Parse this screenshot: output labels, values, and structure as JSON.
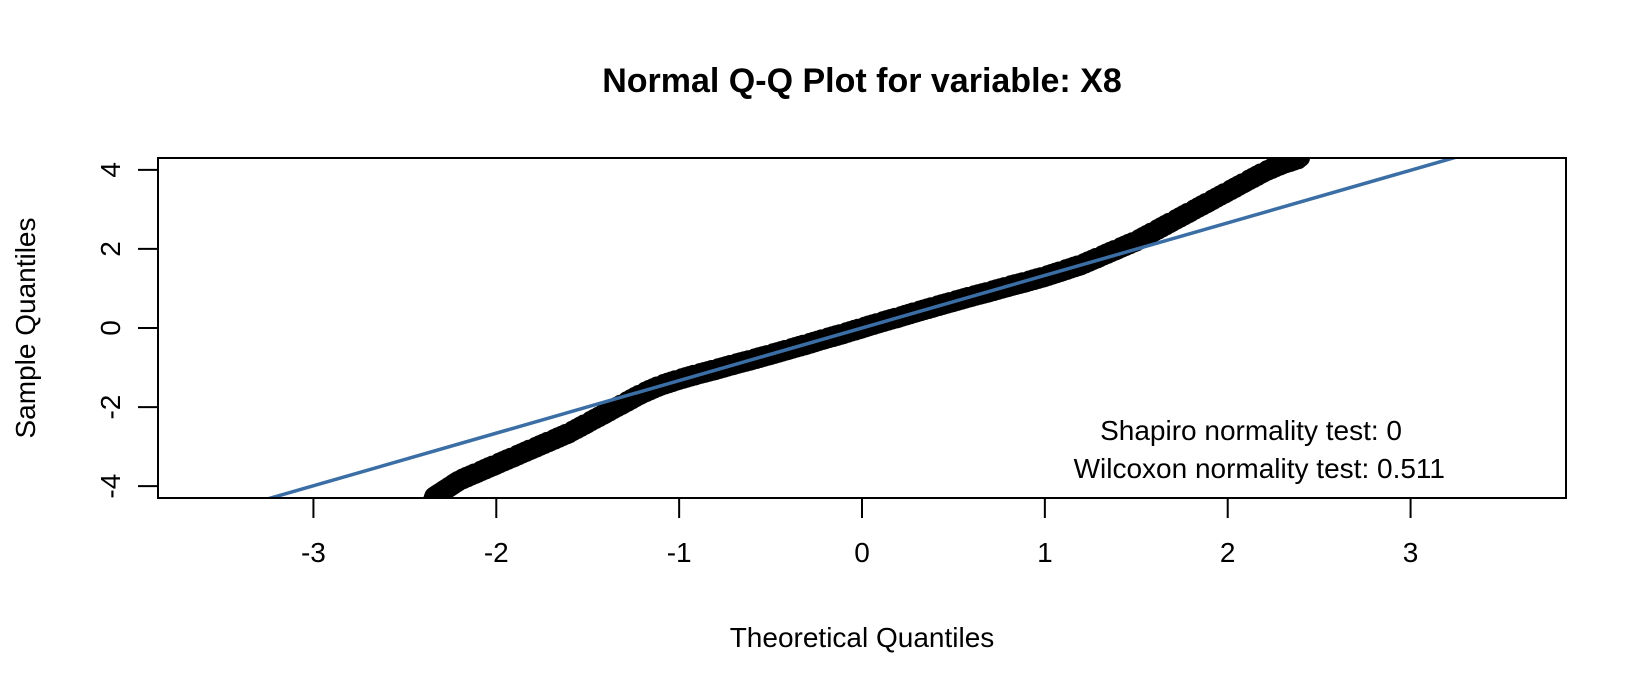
{
  "chart_data": {
    "type": "scatter",
    "title": "Normal Q-Q Plot for variable: X8",
    "xlabel": "Theoretical Quantiles",
    "ylabel": "Sample Quantiles",
    "xlim": [
      -3.85,
      3.85
    ],
    "ylim": [
      -4.3,
      4.3
    ],
    "x_ticks": [
      -3,
      -2,
      -1,
      0,
      1,
      2,
      3
    ],
    "y_ticks": [
      -4,
      -2,
      0,
      2,
      4
    ],
    "x_tick_labels": [
      "-3",
      "-2",
      "-1",
      "0",
      "1",
      "2",
      "3"
    ],
    "y_tick_labels": [
      "-4",
      "-2",
      "0",
      "2",
      "4"
    ],
    "grid": false,
    "point_color": "#000000",
    "line_color": "#3b6ea5",
    "reference_line": {
      "intercept": 0.0,
      "slope": 1.33
    },
    "series": [
      {
        "points": [
          [
            -2.35,
            -4.3
          ],
          [
            -2.3,
            -4.15
          ],
          [
            -2.25,
            -4.0
          ],
          [
            -2.2,
            -3.85
          ],
          [
            -2.1,
            -3.65
          ],
          [
            -2.0,
            -3.45
          ],
          [
            -1.9,
            -3.25
          ],
          [
            -1.8,
            -3.05
          ],
          [
            -1.7,
            -2.85
          ],
          [
            -1.6,
            -2.65
          ],
          [
            -1.5,
            -2.4
          ],
          [
            -1.4,
            -2.15
          ],
          [
            -1.3,
            -1.9
          ],
          [
            -1.2,
            -1.65
          ],
          [
            -1.1,
            -1.45
          ],
          [
            -1.0,
            -1.3
          ],
          [
            -0.9,
            -1.17
          ],
          [
            -0.8,
            -1.05
          ],
          [
            -0.7,
            -0.92
          ],
          [
            -0.6,
            -0.8
          ],
          [
            -0.5,
            -0.67
          ],
          [
            -0.4,
            -0.54
          ],
          [
            -0.3,
            -0.41
          ],
          [
            -0.2,
            -0.27
          ],
          [
            -0.1,
            -0.14
          ],
          [
            0.0,
            0.0
          ],
          [
            0.1,
            0.14
          ],
          [
            0.2,
            0.27
          ],
          [
            0.3,
            0.41
          ],
          [
            0.4,
            0.54
          ],
          [
            0.5,
            0.67
          ],
          [
            0.6,
            0.8
          ],
          [
            0.7,
            0.92
          ],
          [
            0.8,
            1.05
          ],
          [
            0.9,
            1.17
          ],
          [
            1.0,
            1.3
          ],
          [
            1.1,
            1.45
          ],
          [
            1.2,
            1.6
          ],
          [
            1.3,
            1.8
          ],
          [
            1.4,
            2.0
          ],
          [
            1.5,
            2.2
          ],
          [
            1.6,
            2.45
          ],
          [
            1.7,
            2.7
          ],
          [
            1.8,
            2.95
          ],
          [
            1.9,
            3.2
          ],
          [
            2.0,
            3.45
          ],
          [
            2.1,
            3.7
          ],
          [
            2.2,
            3.95
          ],
          [
            2.3,
            4.15
          ],
          [
            2.4,
            4.3
          ]
        ]
      }
    ],
    "annotations": [
      "Shapiro normality test: 0",
      "Wilcoxon normality test: 0.511"
    ]
  }
}
